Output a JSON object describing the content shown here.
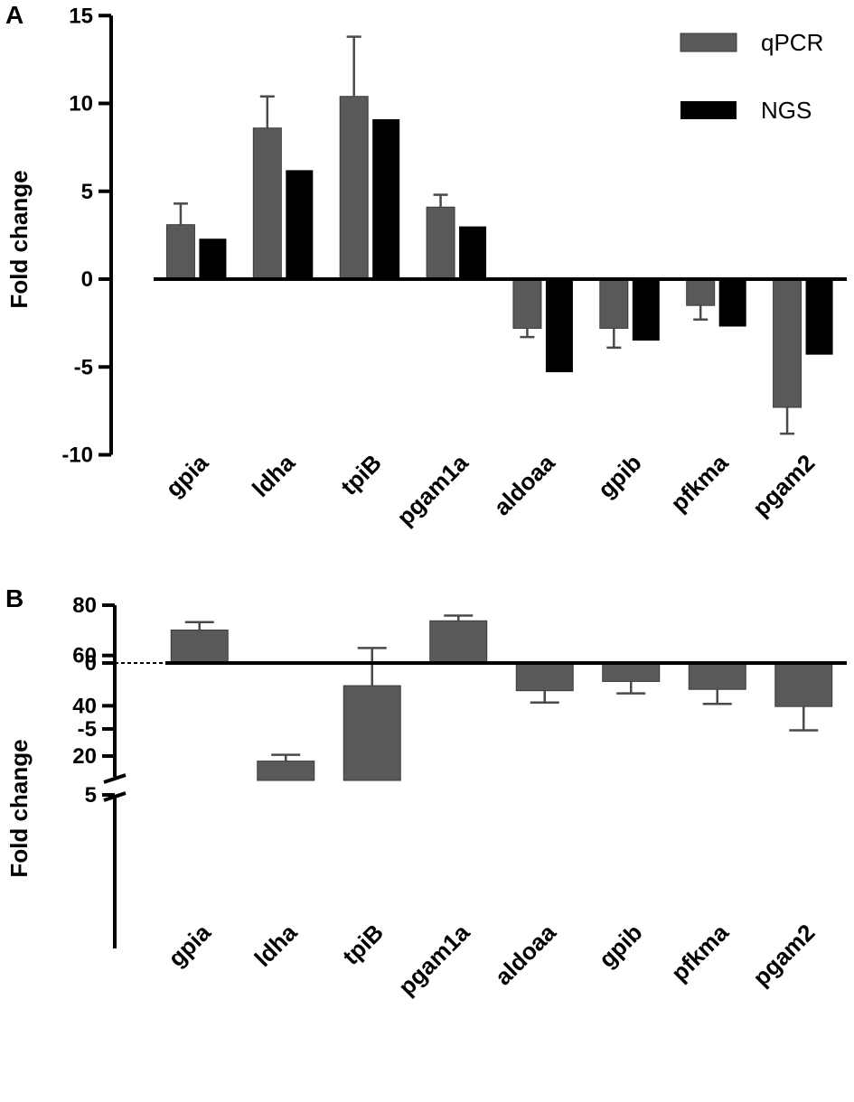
{
  "chart_data": [
    {
      "panel": "A",
      "type": "bar",
      "ylabel": "Fold change",
      "ylim": [
        -10,
        15
      ],
      "yticks": [
        15,
        10,
        5,
        0,
        -5,
        -10
      ],
      "categories": [
        "gpia",
        "ldha",
        "tpiB",
        "pgam1a",
        "aldoaa",
        "gpib",
        "pfkma",
        "pgam2"
      ],
      "series": [
        {
          "name": "qPCR",
          "color": "#595959",
          "values": [
            3.1,
            8.6,
            10.4,
            4.1,
            -2.8,
            -2.8,
            -1.5,
            -7.3
          ],
          "errors": [
            1.2,
            1.8,
            3.4,
            0.7,
            0.5,
            1.1,
            0.8,
            1.5
          ]
        },
        {
          "name": "NGS",
          "color": "#000000",
          "values": [
            2.3,
            6.2,
            9.1,
            3.0,
            -5.3,
            -3.5,
            -2.7,
            -4.3
          ]
        }
      ],
      "legend": [
        "qPCR",
        "NGS"
      ]
    },
    {
      "panel": "B",
      "type": "bar",
      "ylabel": "Fold change",
      "broken_axis": {
        "lower": [
          -5,
          5
        ],
        "upper": [
          20,
          80
        ]
      },
      "yticks_upper": [
        80,
        60,
        40,
        20
      ],
      "yticks_lower": [
        5,
        0,
        -5
      ],
      "categories": [
        "gpia",
        "ldha",
        "tpiB",
        "pgam1a",
        "aldoaa",
        "gpib",
        "pfkma",
        "pgam2"
      ],
      "series": [
        {
          "name": "qPCR",
          "color": "#595959",
          "values": [
            2.5,
            18,
            48,
            3.2,
            -2.1,
            -1.4,
            -2.0,
            -3.3
          ],
          "errors": [
            0.6,
            2.5,
            15,
            0.4,
            0.9,
            0.9,
            1.1,
            1.8
          ]
        }
      ]
    }
  ]
}
